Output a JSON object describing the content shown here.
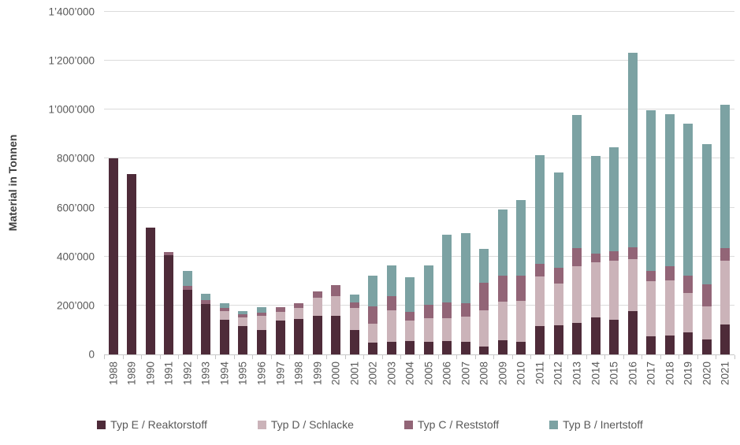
{
  "chart_data": {
    "type": "bar",
    "stacked": true,
    "title": "",
    "ylabel": "Material in Tonnen",
    "xlabel": "",
    "ylim": [
      0,
      1400000
    ],
    "ytick_labels": [
      "0",
      "200’000",
      "400’000",
      "600’000",
      "800’000",
      "1’000’000",
      "1’200’000",
      "1’400’000"
    ],
    "grid": "horizontal",
    "legend_position": "bottom",
    "categories": [
      "1988",
      "1989",
      "1990",
      "1991",
      "1992",
      "1993",
      "1994",
      "1995",
      "1996",
      "1997",
      "1998",
      "1999",
      "2000",
      "2001",
      "2002",
      "2003",
      "2004",
      "2005",
      "2006",
      "2007",
      "2008",
      "2009",
      "2010",
      "2011",
      "2012",
      "2013",
      "2014",
      "2015",
      "2016",
      "2017",
      "2018",
      "2019",
      "2020",
      "2021"
    ],
    "series": [
      {
        "name": "Typ E / Reaktorstoff",
        "color": "#4E2B39",
        "values": [
          803000,
          737000,
          518000,
          404000,
          265000,
          205000,
          142000,
          116000,
          101000,
          137000,
          145000,
          157000,
          157000,
          99000,
          47000,
          50000,
          56000,
          53000,
          54000,
          50000,
          31000,
          58000,
          52000,
          116000,
          119000,
          130000,
          151000,
          142000,
          178000,
          73000,
          77000,
          89000,
          61000,
          121000
        ]
      },
      {
        "name": "Typ D / Schlacke",
        "color": "#CBB3B9",
        "values": [
          0,
          0,
          0,
          0,
          0,
          0,
          36000,
          36000,
          56000,
          38000,
          46000,
          76000,
          82000,
          91000,
          79000,
          129000,
          81000,
          96000,
          94000,
          106000,
          149000,
          157000,
          166000,
          202000,
          172000,
          230000,
          225000,
          240000,
          212000,
          227000,
          226000,
          163000,
          135000,
          261000
        ]
      },
      {
        "name": "Typ C / Reststoff",
        "color": "#926577",
        "values": [
          0,
          0,
          0,
          13000,
          14000,
          16000,
          13000,
          12000,
          15000,
          18000,
          19000,
          24000,
          45000,
          22000,
          70000,
          59000,
          38000,
          55000,
          65000,
          53000,
          112000,
          106000,
          105000,
          51000,
          64000,
          75000,
          37000,
          40000,
          48000,
          42000,
          57000,
          71000,
          90000,
          51000
        ]
      },
      {
        "name": "Typ B / Inertstoff",
        "color": "#7CA2A3",
        "values": [
          0,
          0,
          0,
          0,
          62000,
          27000,
          19000,
          13000,
          22000,
          0,
          0,
          0,
          0,
          34000,
          126000,
          126000,
          141000,
          160000,
          275000,
          286000,
          141000,
          270000,
          308000,
          444000,
          388000,
          545000,
          397000,
          426000,
          794000,
          655000,
          621000,
          621000,
          574000,
          588000
        ]
      }
    ]
  }
}
